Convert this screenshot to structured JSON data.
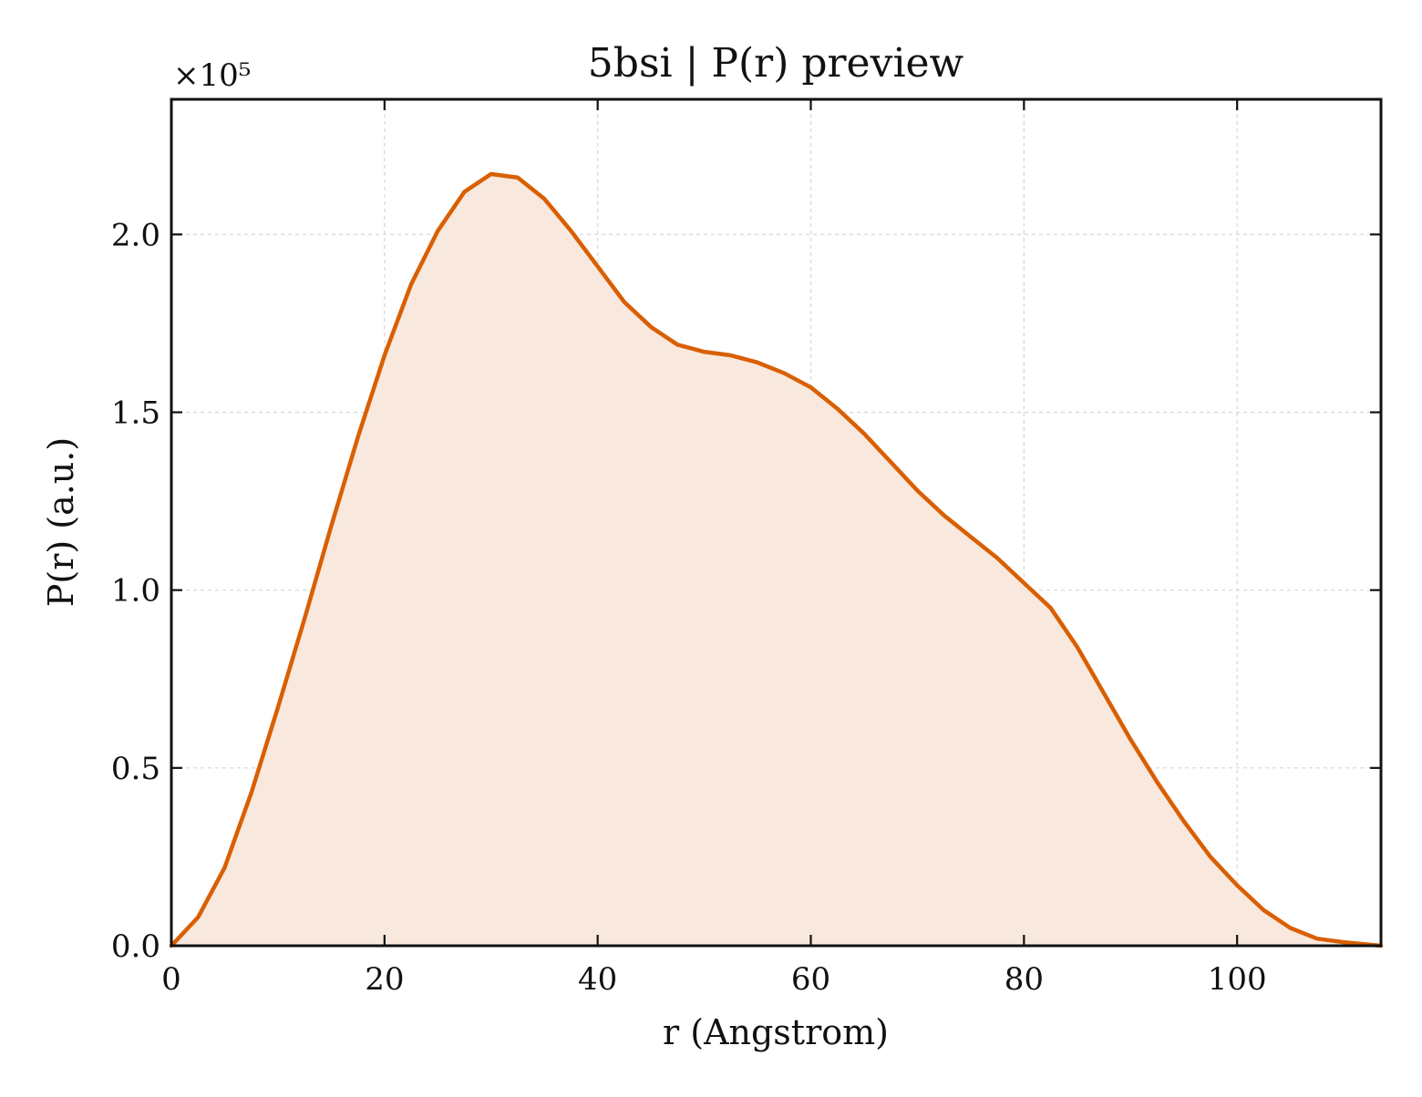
{
  "chart_data": {
    "type": "area",
    "title": "5bsi | P(r) preview",
    "xlabel": "r (Angstrom)",
    "ylabel": "P(r) (a.u.)",
    "y_offset_label": "×10⁵",
    "xlim": [
      0,
      113.5
    ],
    "ylim": [
      0,
      2.38
    ],
    "y_scale_factor": 100000,
    "x_ticks": [
      0,
      20,
      40,
      60,
      80,
      100
    ],
    "x_tick_labels": [
      "0",
      "20",
      "40",
      "60",
      "80",
      "100"
    ],
    "y_ticks": [
      0.0,
      0.5,
      1.0,
      1.5,
      2.0
    ],
    "y_tick_labels": [
      "0.0",
      "0.5",
      "1.0",
      "1.5",
      "2.0"
    ],
    "grid": true,
    "legend": false,
    "colors": {
      "line": "#d95f02",
      "fill": "#f8e8dd",
      "grid": "#d6d6d6",
      "axes": "#111111"
    },
    "series": [
      {
        "x": [
          0,
          2.5,
          5.0,
          7.5,
          10.0,
          12.5,
          15.0,
          17.5,
          20.0,
          22.5,
          25.0,
          27.5,
          30.0,
          32.5,
          35.0,
          37.5,
          40.0,
          42.5,
          45.0,
          47.5,
          50.0,
          52.5,
          55.0,
          57.5,
          60.0,
          62.5,
          65.0,
          67.5,
          70.0,
          72.5,
          75.0,
          77.5,
          80.0,
          82.5,
          85.0,
          87.5,
          90.0,
          92.5,
          95.0,
          97.5,
          100.0,
          102.5,
          105.0,
          107.5,
          110.0,
          113.5
        ],
        "y": [
          0.0,
          0.08,
          0.22,
          0.43,
          0.67,
          0.92,
          1.18,
          1.43,
          1.66,
          1.86,
          2.01,
          2.12,
          2.17,
          2.16,
          2.1,
          2.01,
          1.91,
          1.81,
          1.74,
          1.69,
          1.67,
          1.66,
          1.64,
          1.61,
          1.57,
          1.51,
          1.44,
          1.36,
          1.28,
          1.21,
          1.15,
          1.09,
          1.02,
          0.95,
          0.84,
          0.71,
          0.58,
          0.46,
          0.35,
          0.25,
          0.17,
          0.1,
          0.05,
          0.02,
          0.01,
          0.0
        ]
      }
    ]
  }
}
